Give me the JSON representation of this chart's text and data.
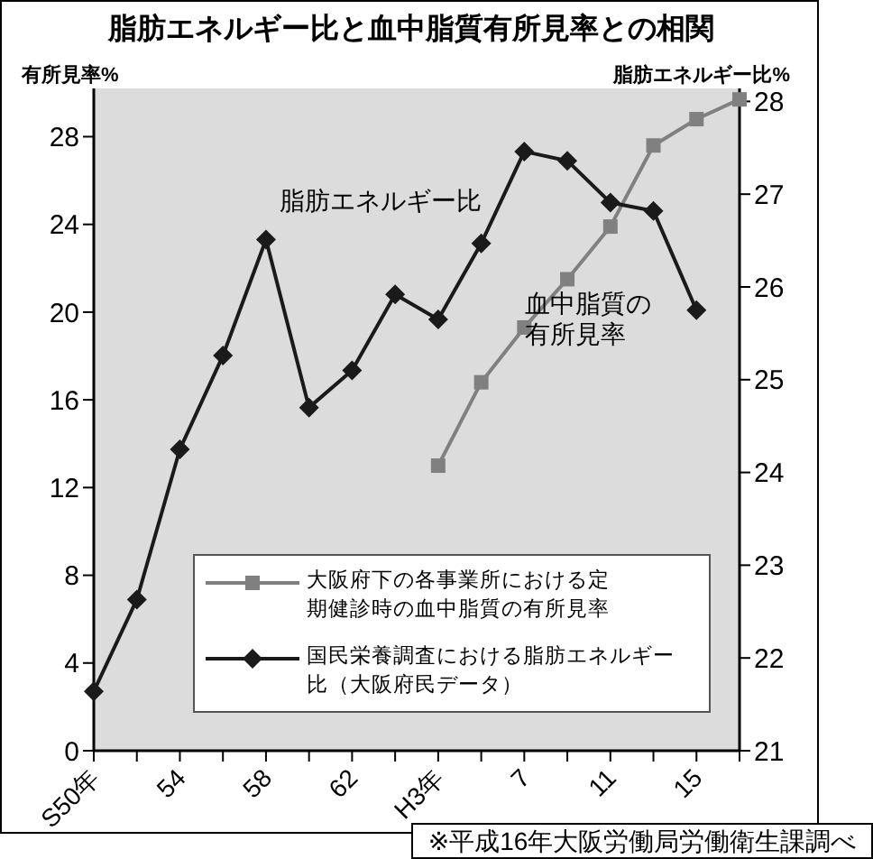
{
  "chart_data": {
    "type": "line",
    "title": "脂肪エネルギー比と血中脂質有所見率との相関",
    "ylabel": "有所見率%",
    "y2label": "脂肪エネルギー比%",
    "categories": [
      "S50年",
      null,
      "54",
      null,
      "58",
      null,
      "62",
      null,
      "H3年",
      null,
      "7",
      null,
      "11",
      null,
      "15",
      null
    ],
    "series": [
      {
        "name": "大阪府下の各事業所における定期健診時の血中脂質の有所見率",
        "color": "#808080",
        "marker": "square",
        "values": [
          null,
          null,
          null,
          null,
          null,
          null,
          null,
          null,
          13.0,
          16.8,
          19.3,
          21.5,
          23.9,
          27.6,
          28.8,
          29.7
        ]
      },
      {
        "name": "国民栄養調査における脂肪エネルギー比（大阪府民データ）",
        "color": "#1a1a1a",
        "marker": "diamond",
        "axis": "y2",
        "values": [
          21.64,
          22.63,
          24.25,
          25.26,
          26.51,
          24.7,
          25.1,
          25.92,
          25.65,
          26.47,
          27.46,
          27.36,
          26.91,
          26.82,
          25.75,
          null
        ]
      }
    ],
    "ylim": [
      0,
      30.2
    ],
    "yticks": [
      0,
      4,
      8,
      12,
      16,
      20,
      24,
      28
    ],
    "y2lim": [
      21,
      28.14
    ],
    "y2ticks": [
      21,
      22,
      23,
      24,
      25,
      26,
      27,
      28
    ],
    "grid": false,
    "legend": "bottom",
    "annotations": [
      "脂肪エネルギー比",
      "血中脂質の有所見率",
      "※平成16年大阪労働局労働衛生課調べ"
    ]
  }
}
